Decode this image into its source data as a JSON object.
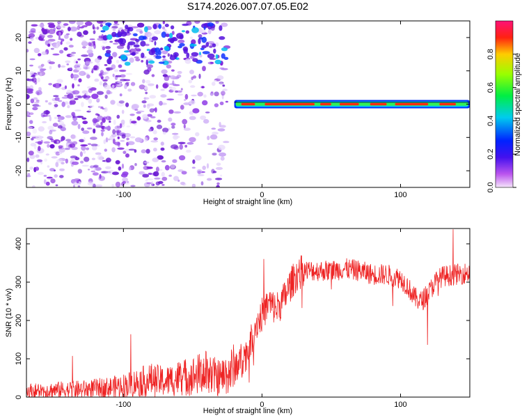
{
  "title": "S174.2026.007.07.05.E02",
  "colors": {
    "line": "#ee2222",
    "spec_bg": "#7a1bd9",
    "spec_band": "#22ccee"
  },
  "chart_data": [
    {
      "type": "heatmap",
      "title": "S174.2026.007.07.05.E02",
      "xlabel": "Height of straight line (km)",
      "ylabel": "Frequency (Hz)",
      "xlim": [
        -170,
        150
      ],
      "ylim": [
        -25,
        25
      ],
      "xticks": [
        -100,
        0,
        100
      ],
      "yticks": [
        -20,
        -10,
        0,
        10,
        20
      ],
      "xtick_labels": [
        "-100",
        "0",
        "100"
      ],
      "ytick_labels": [
        "-20",
        "-10",
        "0",
        "10",
        "20"
      ],
      "colorbar": {
        "label": "Normalized spectral amplitude",
        "range": [
          0.0,
          1.0
        ],
        "ticks": [
          0.0,
          0.2,
          0.4,
          0.6,
          0.8
        ],
        "tick_labels": [
          "0.0",
          "0.2",
          "0.4",
          "0.6",
          "0.8"
        ]
      },
      "features": [
        {
          "name": "broadband-noise",
          "x_range": [
            -170,
            -25
          ],
          "y_range": [
            -25,
            25
          ],
          "amplitude": 0.1
        },
        {
          "name": "upper-echo",
          "x_range": [
            -115,
            -25
          ],
          "y_range": [
            12,
            24
          ],
          "amplitude": 0.2
        },
        {
          "name": "zero-doppler-band",
          "x_range": [
            -20,
            150
          ],
          "y_center": 0,
          "amplitude_peak": 0.9
        }
      ]
    },
    {
      "type": "line",
      "xlabel": "Height of straight line (km)",
      "ylabel": "SNR (10 * v/v)",
      "xlim": [
        -170,
        150
      ],
      "ylim": [
        0,
        440
      ],
      "xticks": [
        -100,
        0,
        100
      ],
      "yticks": [
        0,
        100,
        200,
        300,
        400
      ],
      "xtick_labels": [
        "-100",
        "0",
        "100"
      ],
      "ytick_labels": [
        "0",
        "100",
        "200",
        "300",
        "400"
      ],
      "series": [
        {
          "name": "SNR",
          "x": [
            -170,
            -150,
            -130,
            -110,
            -100,
            -90,
            -80,
            -70,
            -60,
            -50,
            -40,
            -35,
            -30,
            -20,
            -10,
            -5,
            0,
            5,
            10,
            15,
            20,
            25,
            30,
            40,
            50,
            60,
            70,
            80,
            90,
            95,
            100,
            105,
            110,
            115,
            120,
            125,
            130,
            140,
            150
          ],
          "values": [
            15,
            18,
            20,
            25,
            30,
            38,
            45,
            40,
            50,
            55,
            65,
            55,
            50,
            75,
            120,
            185,
            215,
            245,
            230,
            250,
            290,
            320,
            330,
            330,
            330,
            335,
            330,
            320,
            320,
            315,
            310,
            290,
            260,
            250,
            270,
            300,
            315,
            320,
            325
          ]
        }
      ]
    }
  ]
}
